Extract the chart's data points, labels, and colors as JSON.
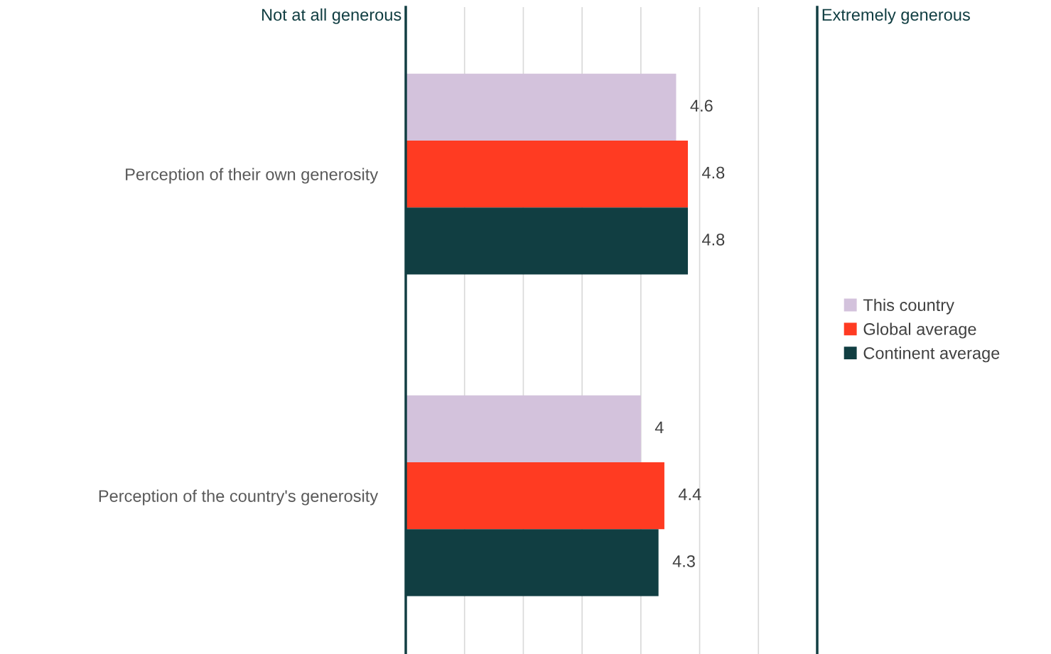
{
  "chart_data": {
    "type": "bar",
    "orientation": "horizontal",
    "categories": [
      "Perception of their own generosity",
      "Perception of the country's generosity"
    ],
    "series": [
      {
        "name": "This country",
        "color": "#d3c2dc",
        "values": [
          4.6,
          4
        ]
      },
      {
        "name": "Global average",
        "color": "#ff3b22",
        "values": [
          4.8,
          4.4
        ]
      },
      {
        "name": "Continent average",
        "color": "#113e42",
        "values": [
          4.8,
          4.3
        ]
      }
    ],
    "xlim": [
      0,
      7
    ],
    "xticks": [
      {
        "value": 0,
        "label": null
      },
      {
        "value": 1,
        "label": null
      },
      {
        "value": 2,
        "label": null
      },
      {
        "value": 3,
        "label": null
      },
      {
        "value": 4,
        "label": null
      },
      {
        "value": 5,
        "label": null
      },
      {
        "value": 6,
        "label": null
      },
      {
        "value": 7,
        "label": null
      }
    ],
    "tick_labels": "y",
    "grid": "x",
    "legend": "right",
    "data_labels": true,
    "annotations": [
      "Not at all generous",
      "Extremely generous"
    ]
  }
}
